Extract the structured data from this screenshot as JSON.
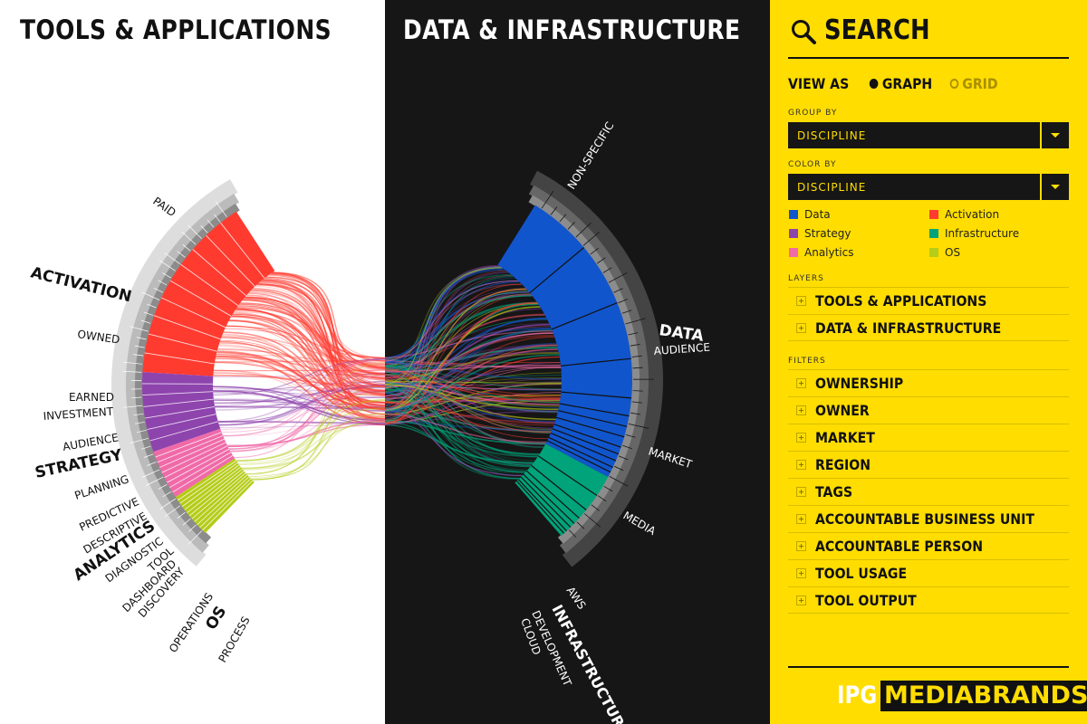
{
  "left_panel": {
    "title": "TOOLS & APPLICATIONS",
    "categories": [
      {
        "name": "ACTIVATION",
        "color": "#ff3b30"
      },
      {
        "name": "STRATEGY",
        "color": "#8e44ad"
      },
      {
        "name": "ANALYTICS",
        "color": "#f06aa8"
      },
      {
        "name": "OS",
        "color": "#b5cc18"
      }
    ],
    "subgroups": [
      "PAID",
      "OWNED",
      "EARNED",
      "INVESTMENT",
      "AUDIENCE",
      "PLANNING",
      "PREDICTIVE",
      "DESCRIPTIVE",
      "DIAGNOSTIC",
      "TOOL",
      "DASHBOARD",
      "DISCOVERY",
      "OPERATIONS",
      "PROCESS"
    ]
  },
  "mid_panel": {
    "title": "DATA & INFRASTRUCTURE",
    "categories": [
      {
        "name": "DATA",
        "color": "#1155cc"
      },
      {
        "name": "INFRASTRUCTURE",
        "color": "#00a37a"
      }
    ],
    "subgroups": [
      "NON-SPECIFIC",
      "AUDIENCE",
      "MARKET",
      "MEDIA",
      "AWS",
      "DEVELOPMENT",
      "CLOUD"
    ]
  },
  "sidebar": {
    "search_label": "SEARCH",
    "view_as": {
      "label": "VIEW AS",
      "options": [
        "GRAPH",
        "GRID"
      ],
      "selected": "GRAPH"
    },
    "group_by": {
      "label": "GROUP BY",
      "value": "DISCIPLINE"
    },
    "color_by": {
      "label": "COLOR BY",
      "value": "DISCIPLINE"
    },
    "legend": [
      {
        "name": "Data",
        "color": "#1155cc"
      },
      {
        "name": "Activation",
        "color": "#ff3b30"
      },
      {
        "name": "Strategy",
        "color": "#8e44ad"
      },
      {
        "name": "Infrastructure",
        "color": "#00a37a"
      },
      {
        "name": "Analytics",
        "color": "#f06aa8"
      },
      {
        "name": "OS",
        "color": "#b5cc18"
      }
    ],
    "layers_label": "LAYERS",
    "layers": [
      "TOOLS & APPLICATIONS",
      "DATA & INFRASTRUCTURE"
    ],
    "filters_label": "FILTERS",
    "filters": [
      "OWNERSHIP",
      "OWNER",
      "MARKET",
      "REGION",
      "TAGS",
      "ACCOUNTABLE BUSINESS UNIT",
      "ACCOUNTABLE PERSON",
      "TOOL USAGE",
      "TOOL OUTPUT"
    ],
    "brand": {
      "part1": "IPG",
      "part2": "MEDIABRANDS"
    }
  },
  "colors": {
    "yellow": "#ffdd00",
    "dark": "#161616"
  }
}
